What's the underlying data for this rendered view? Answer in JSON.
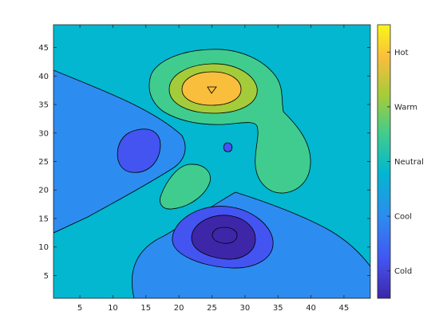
{
  "chart_data": {
    "type": "contour",
    "filled": true,
    "x_ticks": [
      5,
      10,
      15,
      20,
      25,
      30,
      35,
      40,
      45
    ],
    "y_ticks": [
      5,
      10,
      15,
      20,
      25,
      30,
      35,
      40,
      45
    ],
    "xlim": [
      1,
      49
    ],
    "ylim": [
      1,
      49
    ],
    "grid": false,
    "colorbar": {
      "placement": "right",
      "labels": [
        "Hot",
        "Warm",
        "Neutral",
        "Cool",
        "Cold"
      ],
      "levels": [
        {
          "color": "#3E26A8"
        },
        {
          "color": "#4354F0"
        },
        {
          "color": "#2D8CF0"
        },
        {
          "color": "#02B7CF"
        },
        {
          "color": "#40CC8E"
        },
        {
          "color": "#A4CC3A"
        },
        {
          "color": "#F9BE3C"
        },
        {
          "color": "#F9F719"
        }
      ]
    },
    "regions": [
      {
        "level": "background",
        "color": "#02B7CF"
      },
      {
        "level": "cool",
        "color": "#2D8CF0"
      },
      {
        "level": "cool-dark",
        "color": "#4354F0"
      },
      {
        "level": "cold",
        "color": "#3E26A8"
      },
      {
        "level": "neutral-warm",
        "color": "#40CC8E"
      },
      {
        "level": "warm",
        "color": "#A4CC3A"
      },
      {
        "level": "hot",
        "color": "#F9BE3C"
      }
    ]
  }
}
